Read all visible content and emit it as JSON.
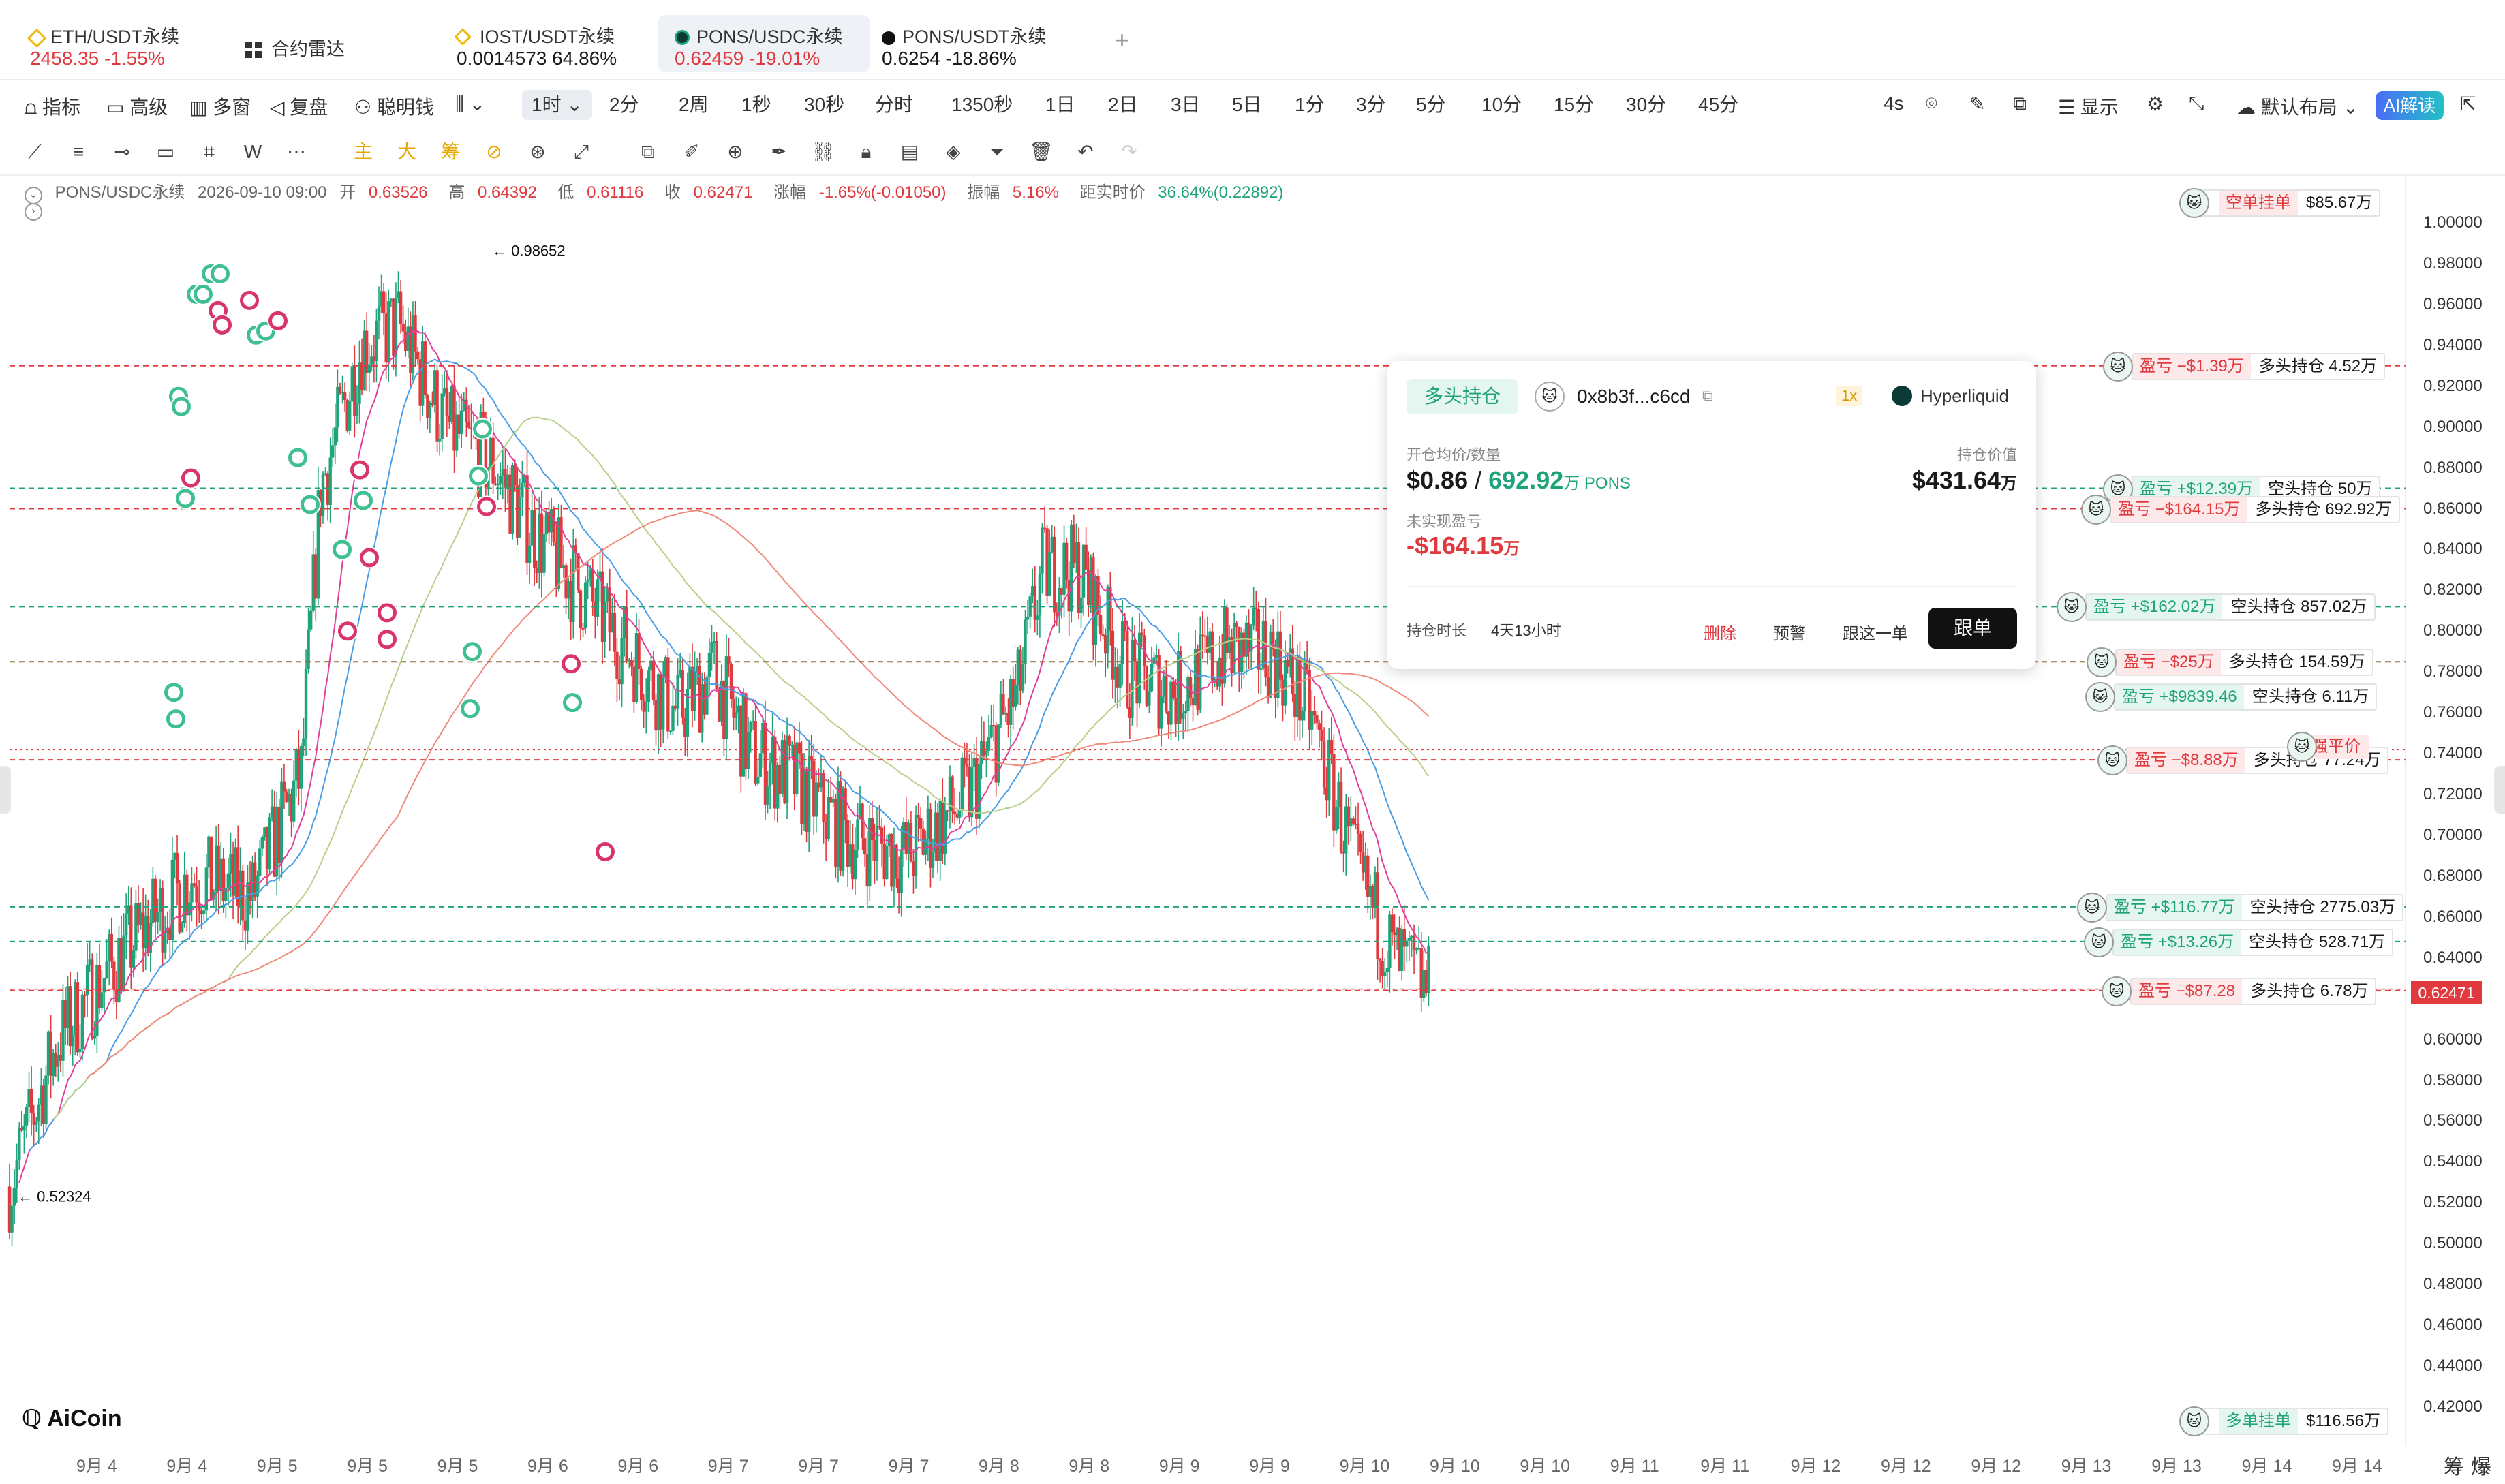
{
  "tabs": [
    {
      "symbol": "ETH/USDT永续",
      "price": "2458.35",
      "change": "-1.55%",
      "dir": "down",
      "dot": "#f0b90b"
    },
    {
      "symbol": "合约雷达",
      "price": "",
      "change": "",
      "dir": "none",
      "dot": ""
    },
    {
      "symbol": "IOST/USDT永续",
      "price": "0.0014573",
      "change": "64.86%",
      "dir": "neutral",
      "dot": "#f0b90b"
    },
    {
      "symbol": "PONS/USDC永续",
      "price": "0.62459",
      "change": "-19.01%",
      "dir": "down",
      "dot": "#0c3a36"
    },
    {
      "symbol": "PONS/USDT永续",
      "price": "0.6254",
      "change": "-18.86%",
      "dir": "neutral",
      "dot": "#111"
    }
  ],
  "add_tab": "+",
  "toolbar1": {
    "left": [
      "指标",
      "高级",
      "多窗",
      "复盘",
      "聪明钱"
    ],
    "timeframes": [
      "1时",
      "2分",
      "2周",
      "1秒",
      "30秒",
      "分时",
      "1350秒",
      "1日",
      "2日",
      "3日",
      "5日",
      "1分",
      "3分",
      "5分",
      "10分",
      "15分",
      "30分",
      "45分"
    ],
    "selected": "1时",
    "right_4s": "4s",
    "display": "显示",
    "layout": "默认布局",
    "ai": "AI解读"
  },
  "info": {
    "symbol": "PONS/USDC永续",
    "datetime": "2026-09-10 09:00",
    "open_l": "开",
    "open": "0.63526",
    "high_l": "高",
    "high": "0.64392",
    "low_l": "低",
    "low": "0.61116",
    "close_l": "收",
    "close": "0.62471",
    "chg_l": "涨幅",
    "chg": "-1.65%(-0.01050)",
    "amp_l": "振幅",
    "amp": "5.16%",
    "dist_l": "距实时价",
    "dist": "36.64%(0.22892)"
  },
  "chart_data": {
    "type": "candlestick",
    "x_labels": [
      "9月 4",
      "9月 4",
      "9月 5",
      "9月 5",
      "9月 5",
      "9月 6",
      "9月 6",
      "9月 7",
      "9月 7",
      "9月 7",
      "9月 8",
      "9月 8",
      "9月 9",
      "9月 9",
      "9月 10",
      "9月 10",
      "9月 10",
      "9月 11",
      "9月 11",
      "9月 12",
      "9月 12",
      "9月 12",
      "9月 13",
      "9月 13",
      "9月 14",
      "9月 14"
    ],
    "y_ticks": [
      "1.00000",
      "0.98000",
      "0.96000",
      "0.94000",
      "0.92000",
      "0.90000",
      "0.88000",
      "0.86000",
      "0.84000",
      "0.82000",
      "0.80000",
      "0.78000",
      "0.76000",
      "0.74000",
      "0.72000",
      "0.70000",
      "0.68000",
      "0.66000",
      "0.64000",
      "0.62000",
      "0.60000",
      "0.58000",
      "0.56000",
      "0.54000",
      "0.52000",
      "0.50000",
      "0.48000",
      "0.46000",
      "0.44000",
      "0.42000"
    ],
    "ylim": [
      0.415,
      1.005
    ],
    "high_marker": "0.98652",
    "low_marker": "0.52324",
    "last_price": "0.62471",
    "up_color": "#1fa37a",
    "down_color": "#e0393e"
  },
  "levels": [
    {
      "pnl": "盈亏 −$1.39万",
      "pos": "多头持仓 4.52万",
      "pnl_color": "r",
      "price": 0.93,
      "line": "#e0393e"
    },
    {
      "pnl": "盈亏 +$12.39万",
      "pos": "空头持仓 50万",
      "pnl_color": "g",
      "price": 0.87,
      "line": "#1fa37a"
    },
    {
      "pnl": "盈亏 −$164.15万",
      "pos": "多头持仓 692.92万",
      "pnl_color": "r",
      "price": 0.86,
      "line": "#e0393e"
    },
    {
      "pnl": "盈亏 +$162.02万",
      "pos": "空头持仓 857.02万",
      "pnl_color": "g",
      "price": 0.812,
      "line": "#1fa37a"
    },
    {
      "pnl": "盈亏 −$25万",
      "pos": "多头持仓 154.59万",
      "pnl_color": "r",
      "price": 0.785,
      "line": "#8a6a3a"
    },
    {
      "pnl": "盈亏 +$9839.46",
      "pos": "空头持仓 6.11万",
      "pnl_color": "g",
      "price": 0.768,
      "line": ""
    },
    {
      "pnl": "盈亏 −$8.88万",
      "pos": "多头持仓 77.24万",
      "pnl_color": "r",
      "price": 0.737,
      "line": "#e0393e"
    },
    {
      "pnl": "盈亏 +$116.77万",
      "pos": "空头持仓 2775.03万",
      "pnl_color": "g",
      "price": 0.665,
      "line": "#1fa37a"
    },
    {
      "pnl": "盈亏 +$13.26万",
      "pos": "空头持仓 528.71万",
      "pnl_color": "g",
      "price": 0.648,
      "line": "#1fa37a"
    },
    {
      "pnl": "盈亏 −$87.28",
      "pos": "多头持仓 6.78万",
      "pnl_color": "r",
      "price": 0.624,
      "line": "#e0393e"
    }
  ],
  "top_order": {
    "label": "空单挂单",
    "value": "$85.67万"
  },
  "bottom_order": {
    "label": "多单挂单",
    "value": "$116.56万"
  },
  "liq": {
    "label": "强平价",
    "price": 0.742
  },
  "popup": {
    "badge": "多头持仓",
    "address": "0x8b3f...c6cd",
    "lev": "1x",
    "exchange": "Hyperliquid",
    "entry_label": "开仓均价/数量",
    "entry": "$0.86",
    "qty": "692.92",
    "qty_unit": "万 PONS",
    "value_label": "持仓价值",
    "value": "$431.64",
    "value_unit": "万",
    "upnl_label": "未实现盈亏",
    "upnl": "-$164.15",
    "upnl_unit": "万",
    "dur_label": "持仓时长",
    "dur": "4天13小时",
    "del": "删除",
    "alert": "预警",
    "follow_one": "跟这一单",
    "follow": "跟单"
  },
  "logo": "AiCoin",
  "corner": [
    "筹",
    "爆"
  ]
}
